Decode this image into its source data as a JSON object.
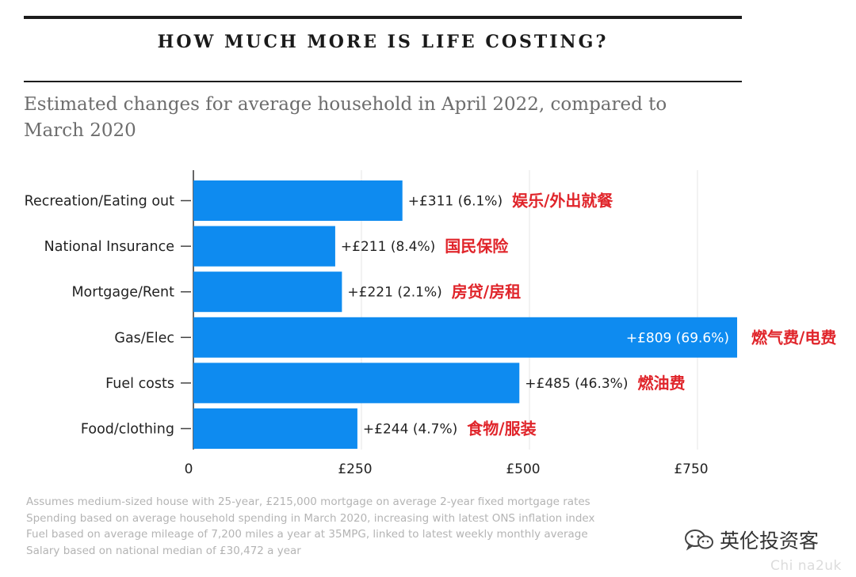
{
  "header": {
    "title": "HOW MUCH MORE IS LIFE COSTING?",
    "subtitle": "Estimated changes for average household in April 2022, compared to March 2020"
  },
  "chart_data": {
    "type": "bar",
    "orientation": "horizontal",
    "categories": [
      "Recreation/Eating out",
      "National Insurance",
      "Mortgage/Rent",
      "Gas/Elec",
      "Fuel costs",
      "Food/clothing"
    ],
    "values": [
      311,
      211,
      221,
      809,
      485,
      244
    ],
    "value_labels": [
      "+£311 (6.1%)",
      "+£211 (8.4%)",
      "+£221 (2.1%)",
      "+£809 (69.6%)",
      "+£485 (46.3%)",
      "+£244 (4.7%)"
    ],
    "annotations_cn": [
      "娱乐/外出就餐",
      "国民保险",
      "房贷/房租",
      "燃气费/电费",
      "燃油费",
      "食物/服装"
    ],
    "x_ticks": [
      0,
      250,
      500,
      750
    ],
    "x_tick_labels": [
      "0",
      "£250",
      "£500",
      "£750"
    ],
    "xlim": [
      0,
      810
    ],
    "grid": true,
    "bar_color": "#0e8bf0",
    "annotation_color": "#e0252b"
  },
  "notes": [
    "Assumes medium-sized house with 25-year, £215,000 mortgage on average 2-year fixed mortgage rates",
    "Spending based on average household spending in March 2020, increasing with latest ONS inflation index",
    "Fuel based on average mileage of 7,200 miles a year at 35MPG, linked to latest weekly monthly average",
    "Salary based on national median of £30,472 a year"
  ],
  "watermark": {
    "brand": "英伦投资客",
    "site": "Chi na2uk",
    "icon": "wechat-icon"
  }
}
